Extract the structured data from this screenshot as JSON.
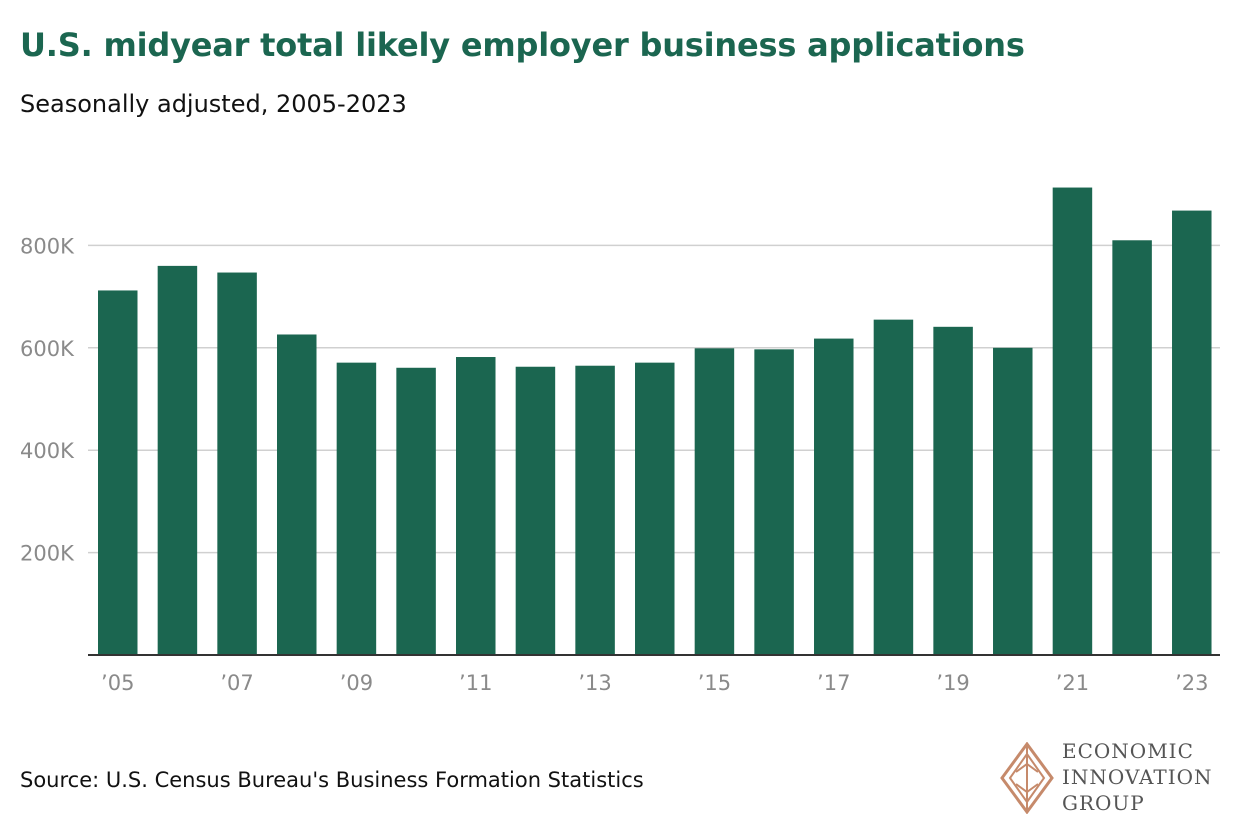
{
  "header": {
    "title": "U.S. midyear total likely employer business applications",
    "subtitle": "Seasonally adjusted, 2005-2023"
  },
  "footer": {
    "source": "Source: U.S. Census Bureau's Business Formation Statistics",
    "logo_lines": [
      "ECONOMIC",
      "INNOVATION",
      "GROUP"
    ]
  },
  "colors": {
    "bar": "#1b6650",
    "title": "#1b6650",
    "grid": "#d0d0d0",
    "axis": "#333333",
    "tick_label": "#8a8a8a",
    "logo": "#c68a6b"
  },
  "chart_data": {
    "type": "bar",
    "categories": [
      "’05",
      "’06",
      "’07",
      "’08",
      "’09",
      "’10",
      "’11",
      "’12",
      "’13",
      "’14",
      "’15",
      "’16",
      "’17",
      "’18",
      "’19",
      "’20",
      "’21",
      "’22",
      "’23"
    ],
    "x_tick_labels": [
      "’05",
      "",
      "’07",
      "",
      "’09",
      "",
      "’11",
      "",
      "’13",
      "",
      "’15",
      "",
      "’17",
      "",
      "’19",
      "",
      "’21",
      "",
      "’23"
    ],
    "values": [
      712000,
      760000,
      747000,
      626000,
      571000,
      561000,
      582000,
      563000,
      565000,
      571000,
      599000,
      597000,
      618000,
      655000,
      641000,
      600000,
      913000,
      810000,
      868000
    ],
    "ylim": [
      0,
      1000000
    ],
    "yticks": [
      200000,
      400000,
      600000,
      800000
    ],
    "ytick_labels": [
      "200K",
      "400K",
      "600K",
      "800K"
    ],
    "grid": true,
    "xlabel": "",
    "ylabel": ""
  }
}
